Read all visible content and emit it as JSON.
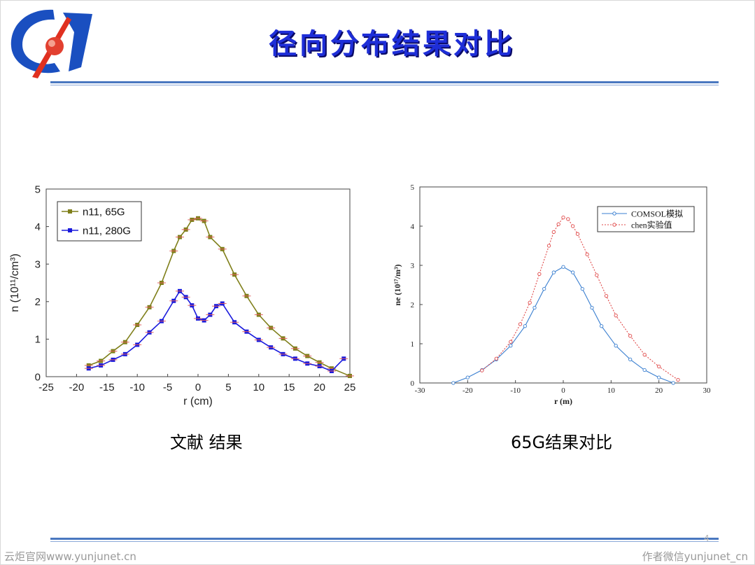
{
  "slide": {
    "title": "径向分布结果对比",
    "page_number": "4",
    "caption_left": "文献 结果",
    "caption_right": "65G结果对比",
    "footer_left": "云炬官网www.yunjunet.cn",
    "footer_right": "作者微信yunjunet_cn"
  },
  "chart_data": [
    {
      "type": "line",
      "xlabel": "r (cm)",
      "ylabel": "n (10¹¹/cm³)",
      "xlim": [
        -25,
        25
      ],
      "ylim": [
        0,
        5
      ],
      "xticks": [
        "-25",
        "-20",
        "-15",
        "-10",
        "-5",
        "0",
        "5",
        "10",
        "15",
        "20",
        "25"
      ],
      "yticks": [
        "0",
        "1",
        "2",
        "3",
        "4",
        "5"
      ],
      "grid": false,
      "legend_position": "top-left",
      "series": [
        {
          "name": "n11, 65G",
          "color": "#7f7f1a",
          "x": [
            -18,
            -16,
            -14,
            -12,
            -10,
            -8,
            -6,
            -4,
            -3,
            -2,
            -1,
            0,
            1,
            2,
            4,
            6,
            8,
            10,
            12,
            14,
            16,
            18,
            20,
            22,
            25
          ],
          "y": [
            0.3,
            0.42,
            0.68,
            0.92,
            1.38,
            1.85,
            2.5,
            3.35,
            3.72,
            3.92,
            4.18,
            4.22,
            4.15,
            3.72,
            3.4,
            2.72,
            2.15,
            1.65,
            1.3,
            1.02,
            0.75,
            0.55,
            0.38,
            0.22,
            0.02
          ]
        },
        {
          "name": "n11, 280G",
          "color": "#1a1adc",
          "x": [
            -18,
            -16,
            -14,
            -12,
            -10,
            -8,
            -6,
            -4,
            -3,
            -2,
            -1,
            0,
            1,
            2,
            3,
            4,
            6,
            8,
            10,
            12,
            14,
            16,
            18,
            20,
            22,
            24
          ],
          "y": [
            0.22,
            0.3,
            0.45,
            0.6,
            0.85,
            1.18,
            1.48,
            2.02,
            2.28,
            2.12,
            1.9,
            1.55,
            1.5,
            1.65,
            1.88,
            1.95,
            1.45,
            1.2,
            0.98,
            0.78,
            0.6,
            0.48,
            0.35,
            0.28,
            0.15,
            0.48
          ]
        }
      ]
    },
    {
      "type": "line",
      "xlabel": "r (m)",
      "ylabel": "ne (10¹⁷/m³)",
      "xlim": [
        -30,
        30
      ],
      "ylim": [
        0,
        5
      ],
      "xticks": [
        "-30",
        "-20",
        "-10",
        "0",
        "10",
        "20",
        "30"
      ],
      "yticks": [
        "0",
        "1",
        "2",
        "3",
        "4",
        "5"
      ],
      "grid": false,
      "legend_position": "top-right",
      "series": [
        {
          "name": "COMSOL模拟",
          "color": "#3a7fd0",
          "x": [
            -23,
            -20,
            -17,
            -14,
            -11,
            -8,
            -6,
            -4,
            -2,
            0,
            2,
            4,
            6,
            8,
            11,
            14,
            17,
            20,
            23
          ],
          "y": [
            0.0,
            0.14,
            0.33,
            0.6,
            0.95,
            1.45,
            1.92,
            2.4,
            2.82,
            2.96,
            2.82,
            2.4,
            1.92,
            1.45,
            0.95,
            0.6,
            0.33,
            0.14,
            0.0
          ]
        },
        {
          "name": "chen实验值",
          "color": "#e04848",
          "x": [
            -17,
            -14,
            -11,
            -9,
            -7,
            -5,
            -3,
            -2,
            -1,
            0,
            1,
            2,
            3,
            5,
            7,
            9,
            11,
            14,
            17,
            20,
            24
          ],
          "y": [
            0.32,
            0.62,
            1.05,
            1.5,
            2.05,
            2.78,
            3.5,
            3.85,
            4.05,
            4.22,
            4.18,
            4.0,
            3.8,
            3.28,
            2.75,
            2.22,
            1.72,
            1.2,
            0.72,
            0.42,
            0.08
          ]
        }
      ]
    }
  ]
}
